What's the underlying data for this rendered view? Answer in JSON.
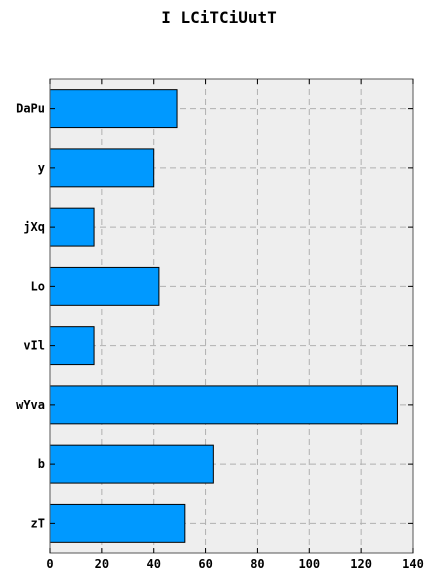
{
  "chart_data": {
    "type": "bar",
    "orientation": "horizontal",
    "title": "I LCiTCiUutT",
    "xlabel": "",
    "ylabel": "",
    "categories": [
      "DaPu",
      "y",
      "jXq",
      "Lo",
      "vIl",
      "wYva",
      "b",
      "zT"
    ],
    "values": [
      49,
      40,
      17,
      42,
      17,
      134,
      63,
      52
    ],
    "xlim": [
      0,
      140
    ],
    "xticks": [
      0,
      20,
      40,
      60,
      80,
      100,
      120,
      140
    ],
    "grid": true,
    "bar_color": "#0099ff",
    "background_color": "#eeeeee"
  }
}
